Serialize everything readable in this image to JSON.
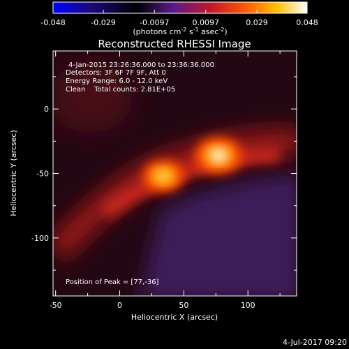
{
  "chart_data": {
    "type": "heatmap",
    "title": "Reconstructed RHESSI Image",
    "xlabel": "Heliocentric X (arcsec)",
    "ylabel": "Heliocentric Y (arcsec)",
    "xlim": [
      -52,
      138
    ],
    "ylim": [
      -145,
      45
    ],
    "xticks": [
      "-50",
      "0",
      "50",
      "100"
    ],
    "xtick_values": [
      -50,
      0,
      50,
      100
    ],
    "yticks": [
      "0",
      "-50",
      "-100"
    ],
    "ytick_values": [
      0,
      -50,
      -100
    ],
    "colorbar": {
      "range": [
        -0.048,
        0.048
      ],
      "ticks": [
        "-0.048",
        "-0.029",
        "-0.0097",
        "0.0097",
        "0.029",
        "0.048"
      ],
      "tick_values": [
        -0.048,
        -0.029,
        -0.0097,
        0.0097,
        0.029,
        0.048
      ],
      "unit_label_parts": [
        "(photons cm",
        "-2",
        " s",
        "-1",
        " asec",
        "-2",
        ")"
      ],
      "colormap": [
        "#0000ff",
        "#1a0a80",
        "#000000",
        "#5a1a8a",
        "#c0182a",
        "#ff5a00",
        "#ffc000",
        "#ffffff"
      ]
    },
    "sources": [
      {
        "x": 77,
        "y": -36,
        "peak": 0.048
      },
      {
        "x": 34,
        "y": -52,
        "peak": 0.041
      }
    ],
    "peak_position": [
      77,
      -36
    ],
    "info_lines": [
      "4-Jan-2015 23:26:36.000 to 23:36:36.000",
      "Detectors: 3F 6F 7F 9F, Att 0",
      "Energy Range: 6.0 - 12.0 keV",
      "Clean    Total counts: 2.81E+05"
    ],
    "peak_label": "Position of Peak = [77,-36]"
  },
  "footer": {
    "timestamp": "4-Jul-2017 09:20"
  }
}
